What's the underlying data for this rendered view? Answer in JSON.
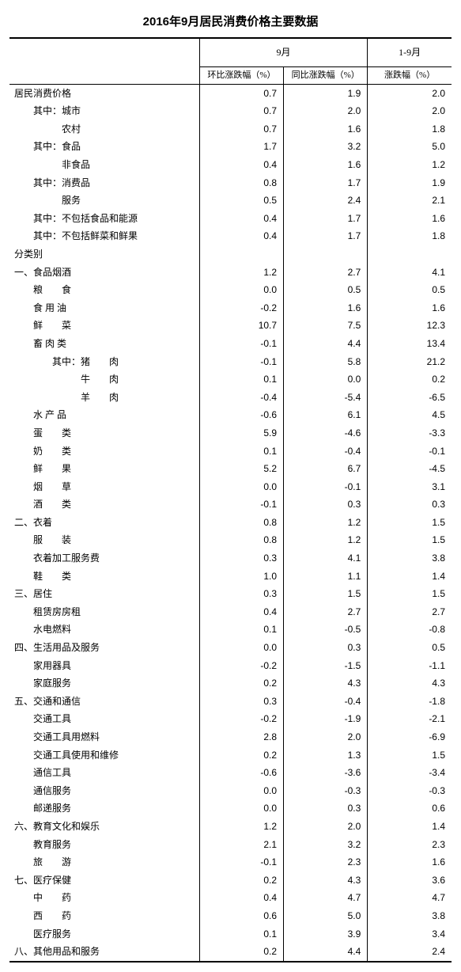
{
  "title": "2016年9月居民消费价格主要数据",
  "header": {
    "group1": "9月",
    "group2": "1-9月",
    "sub1": "环比涨跌幅（%）",
    "sub2": "同比涨跌幅（%）",
    "sub3": "涨跌幅（%）"
  },
  "rows": [
    {
      "label": "居民消费价格",
      "indent": 0,
      "v1": "0.7",
      "v2": "1.9",
      "v3": "2.0"
    },
    {
      "label": "其中：城市",
      "indent": 2,
      "v1": "0.7",
      "v2": "2.0",
      "v3": "2.0"
    },
    {
      "label": "农村",
      "indent": 5,
      "v1": "0.7",
      "v2": "1.6",
      "v3": "1.8"
    },
    {
      "label": "其中：食品",
      "indent": 2,
      "v1": "1.7",
      "v2": "3.2",
      "v3": "5.0"
    },
    {
      "label": "非食品",
      "indent": 5,
      "v1": "0.4",
      "v2": "1.6",
      "v3": "1.2"
    },
    {
      "label": "其中：消费品",
      "indent": 2,
      "v1": "0.8",
      "v2": "1.7",
      "v3": "1.9"
    },
    {
      "label": "服务",
      "indent": 5,
      "v1": "0.5",
      "v2": "2.4",
      "v3": "2.1"
    },
    {
      "label": "其中：不包括食品和能源",
      "indent": 2,
      "v1": "0.4",
      "v2": "1.7",
      "v3": "1.6"
    },
    {
      "label": "其中：不包括鲜菜和鲜果",
      "indent": 2,
      "v1": "0.4",
      "v2": "1.7",
      "v3": "1.8"
    },
    {
      "label": "分类别",
      "indent": 0,
      "v1": "",
      "v2": "",
      "v3": ""
    },
    {
      "label": "一、食品烟酒",
      "indent": 0,
      "v1": "1.2",
      "v2": "2.7",
      "v3": "4.1"
    },
    {
      "label": "粮　　食",
      "indent": 2,
      "v1": "0.0",
      "v2": "0.5",
      "v3": "0.5"
    },
    {
      "label": "食 用 油",
      "indent": 2,
      "v1": "-0.2",
      "v2": "1.6",
      "v3": "1.6"
    },
    {
      "label": "鲜　　菜",
      "indent": 2,
      "v1": "10.7",
      "v2": "7.5",
      "v3": "12.3"
    },
    {
      "label": "畜 肉 类",
      "indent": 2,
      "v1": "-0.1",
      "v2": "4.4",
      "v3": "13.4"
    },
    {
      "label": "其中：猪　　肉",
      "indent": 4,
      "v1": "-0.1",
      "v2": "5.8",
      "v3": "21.2"
    },
    {
      "label": "牛　　肉",
      "indent": 7,
      "v1": "0.1",
      "v2": "0.0",
      "v3": "0.2"
    },
    {
      "label": "羊　　肉",
      "indent": 7,
      "v1": "-0.4",
      "v2": "-5.4",
      "v3": "-6.5"
    },
    {
      "label": "水 产 品",
      "indent": 2,
      "v1": "-0.6",
      "v2": "6.1",
      "v3": "4.5"
    },
    {
      "label": "蛋　　类",
      "indent": 2,
      "v1": "5.9",
      "v2": "-4.6",
      "v3": "-3.3"
    },
    {
      "label": "奶　　类",
      "indent": 2,
      "v1": "0.1",
      "v2": "-0.4",
      "v3": "-0.1"
    },
    {
      "label": "鲜　　果",
      "indent": 2,
      "v1": "5.2",
      "v2": "6.7",
      "v3": "-4.5"
    },
    {
      "label": "烟　　草",
      "indent": 2,
      "v1": "0.0",
      "v2": "-0.1",
      "v3": "3.1"
    },
    {
      "label": "酒　　类",
      "indent": 2,
      "v1": "-0.1",
      "v2": "0.3",
      "v3": "0.3"
    },
    {
      "label": "二、衣着",
      "indent": 0,
      "v1": "0.8",
      "v2": "1.2",
      "v3": "1.5"
    },
    {
      "label": "服　　装",
      "indent": 2,
      "v1": "0.8",
      "v2": "1.2",
      "v3": "1.5"
    },
    {
      "label": "衣着加工服务费",
      "indent": 2,
      "v1": "0.3",
      "v2": "4.1",
      "v3": "3.8"
    },
    {
      "label": "鞋　　类",
      "indent": 2,
      "v1": "1.0",
      "v2": "1.1",
      "v3": "1.4"
    },
    {
      "label": "三、居住",
      "indent": 0,
      "v1": "0.3",
      "v2": "1.5",
      "v3": "1.5"
    },
    {
      "label": "租赁房房租",
      "indent": 2,
      "v1": "0.4",
      "v2": "2.7",
      "v3": "2.7"
    },
    {
      "label": "水电燃料",
      "indent": 2,
      "v1": "0.1",
      "v2": "-0.5",
      "v3": "-0.8"
    },
    {
      "label": "四、生活用品及服务",
      "indent": 0,
      "v1": "0.0",
      "v2": "0.3",
      "v3": "0.5"
    },
    {
      "label": "家用器具",
      "indent": 2,
      "v1": "-0.2",
      "v2": "-1.5",
      "v3": "-1.1"
    },
    {
      "label": "家庭服务",
      "indent": 2,
      "v1": "0.2",
      "v2": "4.3",
      "v3": "4.3"
    },
    {
      "label": "五、交通和通信",
      "indent": 0,
      "v1": "0.3",
      "v2": "-0.4",
      "v3": "-1.8"
    },
    {
      "label": "交通工具",
      "indent": 2,
      "v1": "-0.2",
      "v2": "-1.9",
      "v3": "-2.1"
    },
    {
      "label": "交通工具用燃料",
      "indent": 2,
      "v1": "2.8",
      "v2": "2.0",
      "v3": "-6.9"
    },
    {
      "label": "交通工具使用和维修",
      "indent": 2,
      "v1": "0.2",
      "v2": "1.3",
      "v3": "1.5"
    },
    {
      "label": "通信工具",
      "indent": 2,
      "v1": "-0.6",
      "v2": "-3.6",
      "v3": "-3.4"
    },
    {
      "label": "通信服务",
      "indent": 2,
      "v1": "0.0",
      "v2": "-0.3",
      "v3": "-0.3"
    },
    {
      "label": "邮递服务",
      "indent": 2,
      "v1": "0.0",
      "v2": "0.3",
      "v3": "0.6"
    },
    {
      "label": "六、教育文化和娱乐",
      "indent": 0,
      "v1": "1.2",
      "v2": "2.0",
      "v3": "1.4"
    },
    {
      "label": "教育服务",
      "indent": 2,
      "v1": "2.1",
      "v2": "3.2",
      "v3": "2.3"
    },
    {
      "label": "旅　　游",
      "indent": 2,
      "v1": "-0.1",
      "v2": "2.3",
      "v3": "1.6"
    },
    {
      "label": "七、医疗保健",
      "indent": 0,
      "v1": "0.2",
      "v2": "4.3",
      "v3": "3.6"
    },
    {
      "label": "中　　药",
      "indent": 2,
      "v1": "0.4",
      "v2": "4.7",
      "v3": "4.7"
    },
    {
      "label": "西　　药",
      "indent": 2,
      "v1": "0.6",
      "v2": "5.0",
      "v3": "3.8"
    },
    {
      "label": "医疗服务",
      "indent": 2,
      "v1": "0.1",
      "v2": "3.9",
      "v3": "3.4"
    },
    {
      "label": "八、其他用品和服务",
      "indent": 0,
      "v1": "0.2",
      "v2": "4.4",
      "v3": "2.4"
    }
  ],
  "styling": {
    "background_color": "#ffffff",
    "text_color": "#000000",
    "border_color": "#000000",
    "title_fontsize": 15,
    "body_fontsize": 12,
    "header_sub_fontsize": 11,
    "indent_unit_em": 1
  }
}
